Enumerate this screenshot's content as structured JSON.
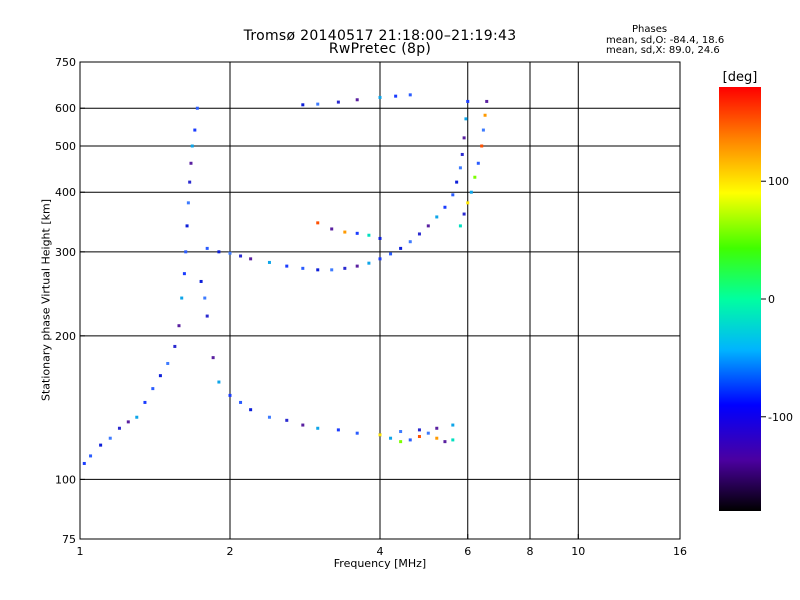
{
  "header": {
    "title": "Tromsø 20140517 21:18:00–21:19:43",
    "subtitle": "RwPretec (8p)"
  },
  "phase_box": {
    "header": "Phases",
    "line1": "mean, sd,O: -84.4, 18.6",
    "line2": "mean, sd,X: 89.0, 24.6"
  },
  "colorbar": {
    "label": "[deg]",
    "ticks": [
      {
        "value": 100,
        "label": "100"
      },
      {
        "value": 0,
        "label": "0"
      },
      {
        "value": -100,
        "label": "-100"
      }
    ],
    "range": [
      -180,
      180
    ]
  },
  "chart_data": {
    "type": "scatter",
    "title": "Tromsø 20140517 21:18:00–21:19:43",
    "subtitle": "RwPretec (8p)",
    "xlabel": "Frequency [MHz]",
    "ylabel": "Stationary phase Virtual Height [km]",
    "x_scale": "log",
    "y_scale": "log",
    "xlim": [
      1,
      16
    ],
    "ylim": [
      75,
      750
    ],
    "xticks": [
      1,
      2,
      4,
      6,
      8,
      10,
      16
    ],
    "yticks": [
      75,
      100,
      200,
      300,
      400,
      500,
      600,
      750
    ],
    "grid_x": [
      2,
      4,
      6,
      8,
      10
    ],
    "grid_y": [
      100,
      200,
      300,
      400,
      500,
      600
    ],
    "color_scale": "phase (deg), rainbow, -180 to 180",
    "series": [
      {
        "values": [
          [
            1.02,
            108
          ],
          [
            1.05,
            112
          ],
          [
            1.1,
            118
          ],
          [
            1.15,
            122
          ],
          [
            1.2,
            128
          ],
          [
            1.25,
            132
          ],
          [
            1.3,
            135
          ],
          [
            1.35,
            145
          ],
          [
            1.4,
            155
          ],
          [
            1.45,
            165
          ],
          [
            1.5,
            175
          ],
          [
            1.55,
            190
          ],
          [
            1.58,
            210
          ],
          [
            1.6,
            240
          ],
          [
            1.62,
            270
          ],
          [
            1.63,
            300
          ],
          [
            1.64,
            340
          ],
          [
            1.65,
            380
          ],
          [
            1.66,
            420
          ],
          [
            1.67,
            460
          ],
          [
            1.68,
            500
          ],
          [
            1.7,
            540
          ],
          [
            1.72,
            600
          ],
          [
            1.75,
            260
          ],
          [
            1.78,
            240
          ],
          [
            1.8,
            220
          ],
          [
            1.85,
            180
          ],
          [
            1.9,
            160
          ],
          [
            2.0,
            150
          ],
          [
            2.1,
            145
          ],
          [
            2.2,
            140
          ],
          [
            2.4,
            135
          ],
          [
            2.6,
            133
          ],
          [
            2.8,
            130
          ],
          [
            3.0,
            128
          ],
          [
            3.3,
            127
          ],
          [
            3.6,
            125
          ],
          [
            4.0,
            124
          ],
          [
            4.4,
            126
          ],
          [
            4.8,
            127
          ],
          [
            5.2,
            128
          ],
          [
            5.6,
            130
          ]
        ]
      },
      {
        "values": [
          [
            1.8,
            305
          ],
          [
            1.9,
            300
          ],
          [
            2.0,
            298
          ],
          [
            2.1,
            294
          ],
          [
            2.2,
            290
          ],
          [
            2.4,
            285
          ],
          [
            2.6,
            280
          ],
          [
            2.8,
            277
          ],
          [
            3.0,
            275
          ],
          [
            3.2,
            275
          ],
          [
            3.4,
            277
          ],
          [
            3.6,
            280
          ],
          [
            3.8,
            284
          ],
          [
            4.0,
            290
          ],
          [
            4.2,
            297
          ],
          [
            4.4,
            305
          ],
          [
            4.6,
            315
          ],
          [
            4.8,
            327
          ],
          [
            5.0,
            340
          ],
          [
            5.2,
            355
          ],
          [
            5.4,
            372
          ],
          [
            5.6,
            395
          ],
          [
            5.7,
            420
          ],
          [
            5.8,
            450
          ],
          [
            5.85,
            480
          ],
          [
            5.9,
            520
          ],
          [
            5.95,
            570
          ],
          [
            6.0,
            620
          ]
        ]
      },
      {
        "values": [
          [
            2.8,
            610
          ],
          [
            3.0,
            612
          ],
          [
            3.3,
            618
          ],
          [
            3.6,
            625
          ],
          [
            4.0,
            632
          ],
          [
            4.3,
            636
          ],
          [
            4.6,
            640
          ]
        ]
      },
      {
        "values": [
          [
            5.8,
            340
          ],
          [
            5.9,
            360
          ],
          [
            6.0,
            380
          ],
          [
            6.1,
            400
          ],
          [
            6.2,
            430
          ],
          [
            6.3,
            460
          ],
          [
            6.4,
            500
          ],
          [
            6.45,
            540
          ],
          [
            6.5,
            580
          ],
          [
            6.55,
            620
          ]
        ]
      },
      {
        "values": [
          [
            3.0,
            345
          ],
          [
            3.2,
            335
          ],
          [
            3.4,
            330
          ],
          [
            3.6,
            328
          ],
          [
            3.8,
            325
          ],
          [
            4.0,
            320
          ]
        ]
      },
      {
        "values": [
          [
            4.0,
            124
          ],
          [
            4.2,
            122
          ],
          [
            4.4,
            120
          ],
          [
            4.6,
            121
          ],
          [
            4.8,
            123
          ],
          [
            5.0,
            125
          ],
          [
            5.2,
            122
          ],
          [
            5.4,
            120
          ],
          [
            5.6,
            121
          ]
        ]
      }
    ]
  }
}
